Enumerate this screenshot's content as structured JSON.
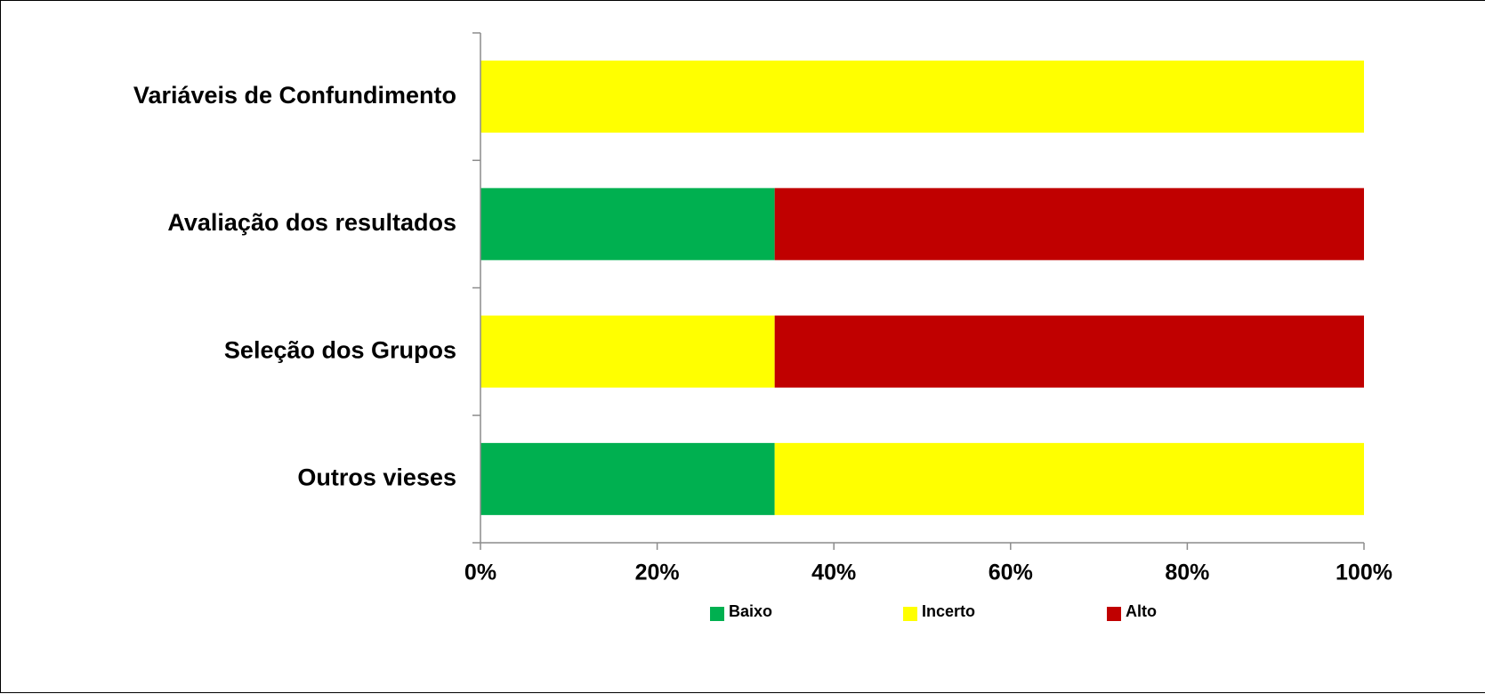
{
  "chart_data": {
    "type": "bar",
    "orientation": "horizontal",
    "stacked": "percent",
    "categories": [
      "Variáveis de Confundimento",
      "Avaliação dos resultados",
      "Seleção dos Grupos",
      "Outros vieses"
    ],
    "series": [
      {
        "name": "Baixo",
        "color": "#00b050",
        "values": [
          0,
          33.3,
          0,
          33.3
        ]
      },
      {
        "name": "Incerto",
        "color": "#ffff00",
        "values": [
          100,
          0,
          33.3,
          66.7
        ]
      },
      {
        "name": "Alto",
        "color": "#c00000",
        "values": [
          0,
          66.7,
          66.7,
          0
        ]
      }
    ],
    "xlim": [
      0,
      100
    ],
    "x_ticks": [
      "0%",
      "20%",
      "40%",
      "60%",
      "80%",
      "100%"
    ],
    "title": "",
    "xlabel": "",
    "ylabel": "",
    "grid": false,
    "legend_position": "bottom"
  }
}
